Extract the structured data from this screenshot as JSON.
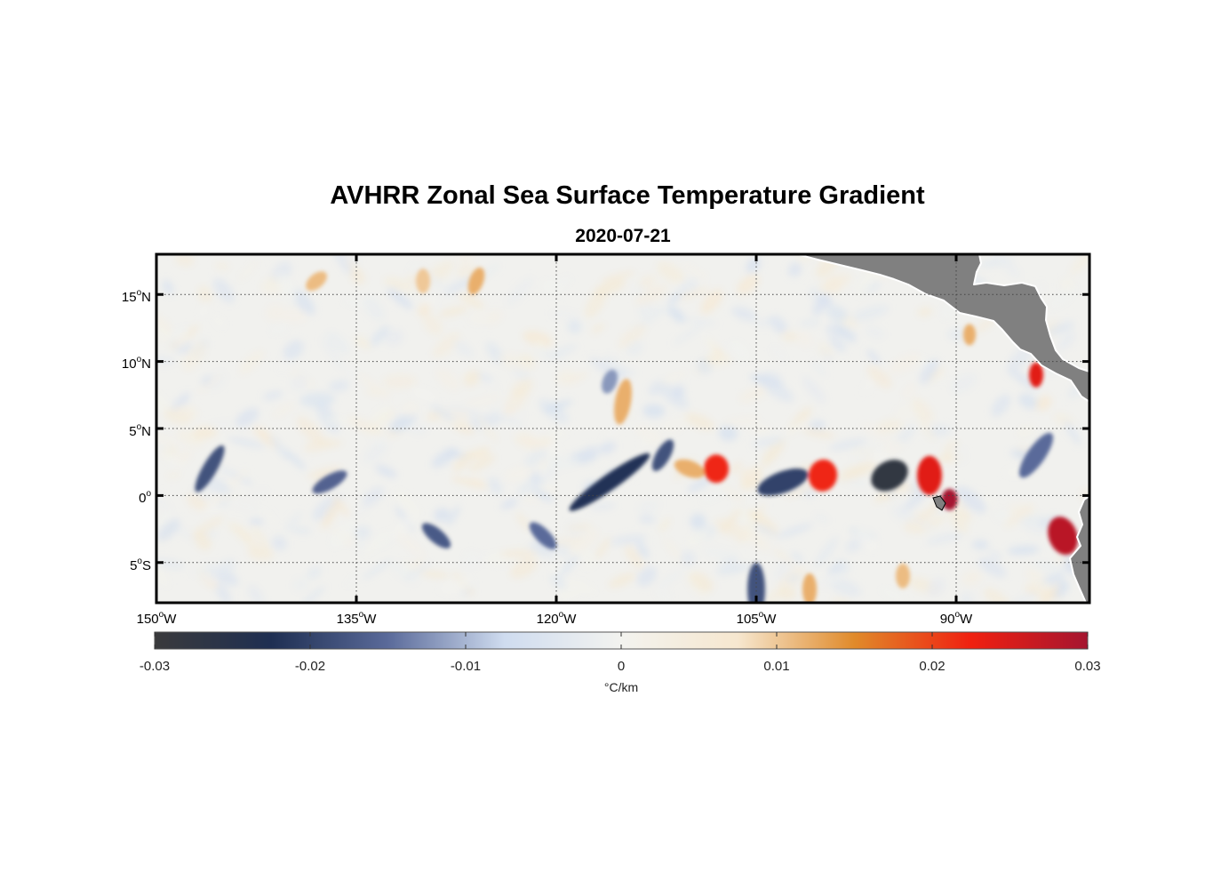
{
  "figure": {
    "title": "AVHRR Zonal Sea Surface Temperature Gradient",
    "subtitle": "2020-07-21"
  },
  "map": {
    "lon_range": [
      -150,
      -80
    ],
    "lat_range": [
      -8,
      18
    ],
    "land_color": "#808080",
    "gridlines": "dotted",
    "lat_ticks": [
      {
        "value": 15,
        "num": "15",
        "hemi": "N"
      },
      {
        "value": 10,
        "num": "10",
        "hemi": "N"
      },
      {
        "value": 5,
        "num": "5",
        "hemi": "N"
      },
      {
        "value": 0,
        "num": "0",
        "hemi": ""
      },
      {
        "value": -5,
        "num": "5",
        "hemi": "S"
      }
    ],
    "lon_ticks": [
      {
        "value": -150,
        "num": "150",
        "hemi": "W"
      },
      {
        "value": -135,
        "num": "135",
        "hemi": "W"
      },
      {
        "value": -120,
        "num": "120",
        "hemi": "W"
      },
      {
        "value": -105,
        "num": "105",
        "hemi": "W"
      },
      {
        "value": -90,
        "num": "90",
        "hemi": "W"
      }
    ]
  },
  "colorbar": {
    "label": "°C/km",
    "range": [
      -0.03,
      0.03
    ],
    "ticks": [
      "-0.03",
      "-0.02",
      "-0.01",
      "0",
      "0.01",
      "0.02",
      "0.03"
    ],
    "colors": [
      "#3a3a3c",
      "#1f2f52",
      "#5a6a9a",
      "#cfdcef",
      "#f3f3ef",
      "#f6e7cf",
      "#e08a2a",
      "#f02010",
      "#a51530"
    ]
  },
  "chart_data": {
    "type": "heatmap",
    "title": "AVHRR Zonal Sea Surface Temperature Gradient",
    "subtitle": "2020-07-21",
    "colorbar_label": "°C/km",
    "value_range": [
      -0.03,
      0.03
    ],
    "x_range": [
      -150,
      -80
    ],
    "y_range": [
      -8,
      18
    ],
    "features": [
      {
        "lon": -116,
        "lat": 1,
        "value": -0.022
      },
      {
        "lon": -112,
        "lat": 3,
        "value": -0.018
      },
      {
        "lon": -110,
        "lat": 2,
        "value": 0.012
      },
      {
        "lon": -108,
        "lat": 2,
        "value": 0.022
      },
      {
        "lon": -103,
        "lat": 1,
        "value": -0.02
      },
      {
        "lon": -100,
        "lat": 1.5,
        "value": 0.022
      },
      {
        "lon": -95,
        "lat": 1.5,
        "value": -0.028
      },
      {
        "lon": -92,
        "lat": 1.5,
        "value": 0.024
      },
      {
        "lon": -90.5,
        "lat": -0.3,
        "value": 0.03
      },
      {
        "lon": -82,
        "lat": -3,
        "value": 0.028
      },
      {
        "lon": -84,
        "lat": 3,
        "value": -0.015
      },
      {
        "lon": -146,
        "lat": 2,
        "value": -0.018
      },
      {
        "lon": -137,
        "lat": 1,
        "value": -0.016
      },
      {
        "lon": -129,
        "lat": -3,
        "value": -0.017
      },
      {
        "lon": -121,
        "lat": -3,
        "value": -0.015
      },
      {
        "lon": -105,
        "lat": -7,
        "value": -0.018
      },
      {
        "lon": -101,
        "lat": -7,
        "value": 0.012
      },
      {
        "lon": -94,
        "lat": -6,
        "value": 0.011
      },
      {
        "lon": -115,
        "lat": 7,
        "value": 0.012
      },
      {
        "lon": -116,
        "lat": 8.5,
        "value": -0.012
      },
      {
        "lon": -84,
        "lat": 9,
        "value": 0.024
      },
      {
        "lon": -89,
        "lat": 12,
        "value": 0.012
      },
      {
        "lon": -138,
        "lat": 16,
        "value": 0.011
      },
      {
        "lon": -130,
        "lat": 16,
        "value": 0.01
      },
      {
        "lon": -126,
        "lat": 16,
        "value": 0.012
      }
    ]
  }
}
